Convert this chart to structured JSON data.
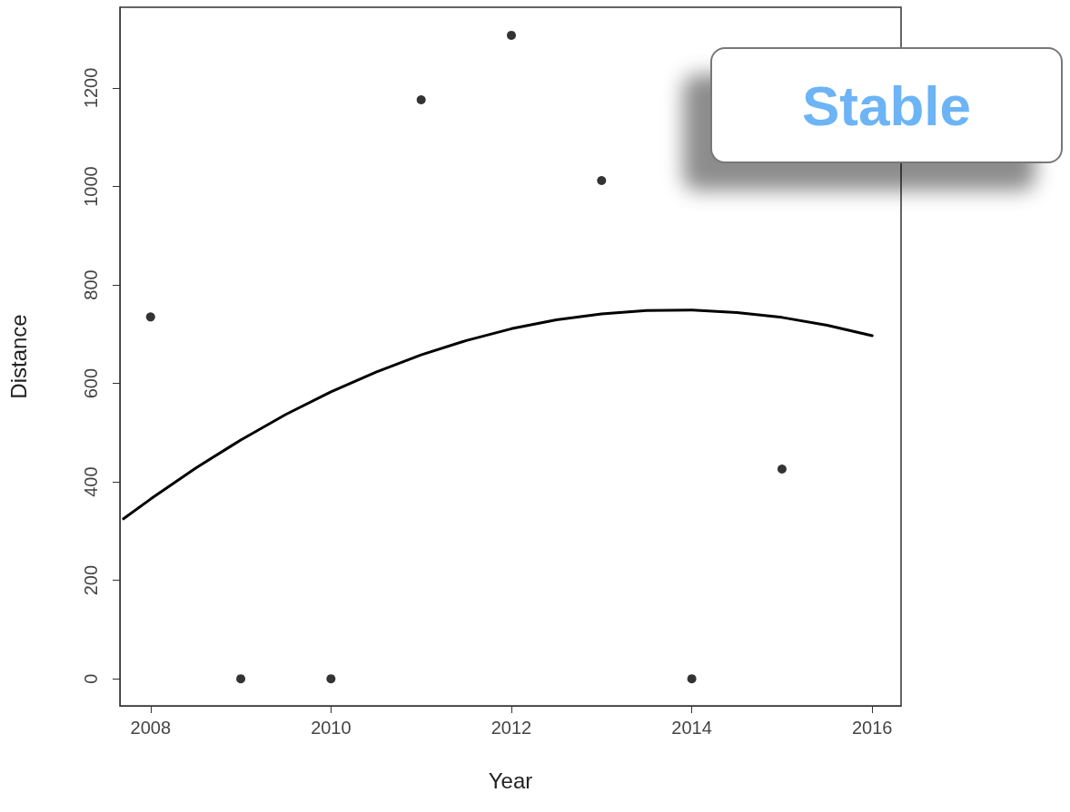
{
  "chart_data": {
    "type": "scatter",
    "xlabel": "Year",
    "ylabel": "Distance",
    "xlim": [
      2007.66,
      2016.32
    ],
    "xticks": [
      2008,
      2010,
      2012,
      2014,
      2016
    ],
    "ylim": [
      -55,
      1364
    ],
    "yticks": [
      0,
      200,
      400,
      600,
      800,
      1000,
      1200
    ],
    "grid": false,
    "marker": "circle",
    "annotations": [
      "Stable"
    ],
    "series": [
      {
        "type": "scatter",
        "color": "#000000",
        "x": [
          2008,
          2009,
          2010,
          2011,
          2012,
          2013,
          2014,
          2015
        ],
        "values": [
          735,
          0,
          0,
          1176,
          1307,
          1012,
          0,
          426
        ]
      },
      {
        "type": "line",
        "color": "#000000",
        "marker": "none",
        "line_style": "solid",
        "x": [
          2007.7,
          2008,
          2008.5,
          2009,
          2009.5,
          2010,
          2010.5,
          2011,
          2011.5,
          2012,
          2012.5,
          2013,
          2013.5,
          2014,
          2014.5,
          2015,
          2015.5,
          2016
        ],
        "values": [
          325,
          365,
          428,
          485,
          537,
          583,
          623,
          658,
          687,
          711,
          729,
          741,
          748,
          749,
          744,
          734,
          718,
          697
        ]
      }
    ]
  }
}
